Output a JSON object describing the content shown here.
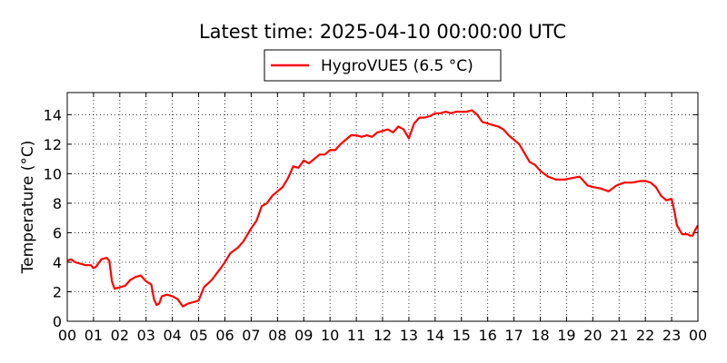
{
  "chart_data": {
    "type": "line",
    "title": "Latest time: 2025-04-10 00:00:00 UTC",
    "xlabel": "",
    "ylabel": "Temperature (°C)",
    "xlim": [
      0,
      24
    ],
    "ylim": [
      0,
      15.5
    ],
    "x_ticks": [
      0,
      1,
      2,
      3,
      4,
      5,
      6,
      7,
      8,
      9,
      10,
      11,
      12,
      13,
      14,
      15,
      16,
      17,
      18,
      19,
      20,
      21,
      22,
      23,
      24
    ],
    "x_tick_labels": [
      "00",
      "01",
      "02",
      "03",
      "04",
      "05",
      "06",
      "07",
      "08",
      "09",
      "10",
      "11",
      "12",
      "13",
      "14",
      "15",
      "16",
      "17",
      "18",
      "19",
      "20",
      "21",
      "22",
      "23",
      "00"
    ],
    "y_ticks": [
      0,
      2,
      4,
      6,
      8,
      10,
      12,
      14
    ],
    "y_tick_labels": [
      "0",
      "2",
      "4",
      "6",
      "8",
      "10",
      "12",
      "14"
    ],
    "grid": true,
    "legend_position": "top-center",
    "series": [
      {
        "name": "HygroVUE5 (6.5 °C)",
        "color": "#ff0000",
        "x": [
          0,
          0.15,
          0.3,
          0.5,
          0.7,
          0.9,
          1.0,
          1.1,
          1.3,
          1.5,
          1.6,
          1.7,
          1.8,
          2.0,
          2.2,
          2.4,
          2.6,
          2.8,
          3.0,
          3.1,
          3.2,
          3.3,
          3.4,
          3.5,
          3.6,
          3.8,
          4.0,
          4.2,
          4.4,
          4.6,
          4.8,
          5.0,
          5.2,
          5.5,
          5.8,
          6.0,
          6.2,
          6.5,
          6.7,
          6.8,
          7.0,
          7.2,
          7.4,
          7.6,
          7.8,
          8.0,
          8.2,
          8.4,
          8.6,
          8.8,
          9.0,
          9.2,
          9.4,
          9.6,
          9.8,
          10.0,
          10.2,
          10.4,
          10.6,
          10.8,
          11.0,
          11.2,
          11.4,
          11.6,
          11.8,
          12.0,
          12.2,
          12.4,
          12.6,
          12.8,
          13.0,
          13.2,
          13.4,
          13.6,
          13.8,
          14.0,
          14.2,
          14.4,
          14.6,
          14.8,
          15.0,
          15.2,
          15.4,
          15.6,
          15.8,
          16.0,
          16.2,
          16.4,
          16.6,
          16.8,
          17.0,
          17.2,
          17.4,
          17.6,
          17.8,
          18.0,
          18.3,
          18.6,
          18.9,
          19.2,
          19.5,
          19.8,
          20.0,
          20.3,
          20.6,
          20.9,
          21.2,
          21.5,
          21.8,
          22.0,
          22.2,
          22.4,
          22.6,
          22.8,
          23.0,
          23.1,
          23.2,
          23.4,
          23.6,
          23.7,
          23.8,
          23.9,
          24.0
        ],
        "y": [
          4.1,
          4.2,
          4.0,
          3.9,
          3.8,
          3.8,
          3.6,
          3.7,
          4.2,
          4.3,
          4.1,
          2.7,
          2.2,
          2.3,
          2.4,
          2.8,
          3.0,
          3.1,
          2.7,
          2.6,
          2.5,
          1.5,
          1.1,
          1.2,
          1.7,
          1.8,
          1.7,
          1.5,
          1.0,
          1.2,
          1.3,
          1.4,
          2.3,
          2.8,
          3.5,
          4.0,
          4.6,
          5.0,
          5.4,
          5.7,
          6.3,
          6.8,
          7.8,
          8.0,
          8.5,
          8.8,
          9.1,
          9.7,
          10.5,
          10.4,
          10.9,
          10.7,
          11.0,
          11.3,
          11.3,
          11.6,
          11.6,
          12.0,
          12.3,
          12.6,
          12.6,
          12.5,
          12.6,
          12.5,
          12.8,
          12.9,
          13.0,
          12.8,
          13.2,
          13.0,
          12.4,
          13.4,
          13.8,
          13.8,
          13.9,
          14.1,
          14.1,
          14.2,
          14.1,
          14.2,
          14.2,
          14.2,
          14.3,
          14.0,
          13.5,
          13.4,
          13.3,
          13.2,
          13.0,
          12.6,
          12.3,
          12.0,
          11.4,
          10.8,
          10.6,
          10.2,
          9.8,
          9.6,
          9.6,
          9.7,
          9.8,
          9.2,
          9.1,
          9.0,
          8.8,
          9.2,
          9.4,
          9.4,
          9.5,
          9.5,
          9.4,
          9.1,
          8.5,
          8.2,
          8.3,
          7.5,
          6.5,
          5.9,
          5.9,
          5.8,
          5.8,
          6.2,
          6.5
        ]
      }
    ]
  }
}
